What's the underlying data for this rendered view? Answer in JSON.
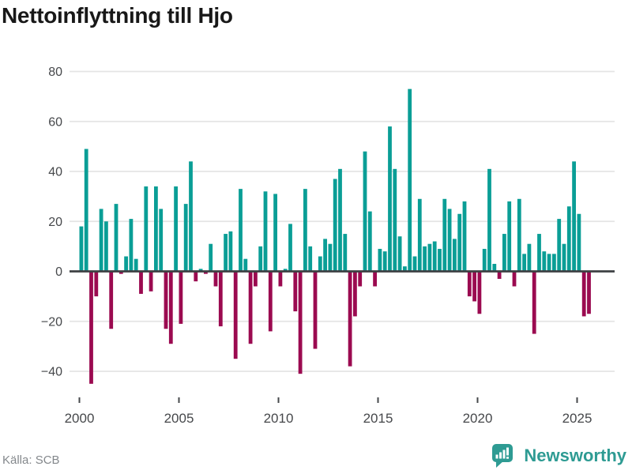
{
  "title": "Nettoinflyttning till Hjo",
  "source": {
    "label": "Källa: SCB"
  },
  "logo": {
    "text": "Newsworthy",
    "color": "#2e9b93"
  },
  "colors": {
    "positive_bar": "#0a9e96",
    "negative_bar": "#9b0a50",
    "grid_line": "#e4e4e4",
    "zero_line": "#3d4043",
    "axis_text": "#46484b",
    "title_text": "#181818",
    "source_text": "#84888c"
  },
  "chart_data": {
    "type": "bar",
    "title": "Nettoinflyttning till Hjo",
    "xlabel": "",
    "ylabel": "",
    "legend": "none",
    "grid": "horizontal",
    "ylim": [
      -50,
      85
    ],
    "y_ticks": [
      80,
      60,
      40,
      20,
      0,
      -20,
      -40
    ],
    "y_tick_labels": [
      "80",
      "60",
      "40",
      "20",
      "0",
      "−20",
      "−40"
    ],
    "x_tick_years": [
      "2000",
      "2005",
      "2010",
      "2015",
      "2020",
      "2025"
    ],
    "categories": [
      "2000Q1",
      "2000Q2",
      "2000Q3",
      "2000Q4",
      "2001Q1",
      "2001Q2",
      "2001Q3",
      "2001Q4",
      "2002Q1",
      "2002Q2",
      "2002Q3",
      "2002Q4",
      "2003Q1",
      "2003Q2",
      "2003Q3",
      "2003Q4",
      "2004Q1",
      "2004Q2",
      "2004Q3",
      "2004Q4",
      "2005Q1",
      "2005Q2",
      "2005Q3",
      "2005Q4",
      "2006Q1",
      "2006Q2",
      "2006Q3",
      "2006Q4",
      "2007Q1",
      "2007Q2",
      "2007Q3",
      "2007Q4",
      "2008Q1",
      "2008Q2",
      "2008Q3",
      "2008Q4",
      "2009Q1",
      "2009Q2",
      "2009Q3",
      "2009Q4",
      "2010Q1",
      "2010Q2",
      "2010Q3",
      "2010Q4",
      "2011Q1",
      "2011Q2",
      "2011Q3",
      "2011Q4",
      "2012Q1",
      "2012Q2",
      "2012Q3",
      "2012Q4",
      "2013Q1",
      "2013Q2",
      "2013Q3",
      "2013Q4",
      "2014Q1",
      "2014Q2",
      "2014Q3",
      "2014Q4",
      "2015Q1",
      "2015Q2",
      "2015Q3",
      "2015Q4",
      "2016Q1",
      "2016Q2",
      "2016Q3",
      "2016Q4",
      "2017Q1",
      "2017Q2",
      "2017Q3",
      "2017Q4",
      "2018Q1",
      "2018Q2",
      "2018Q3",
      "2018Q4",
      "2019Q1",
      "2019Q2",
      "2019Q3",
      "2019Q4",
      "2020Q1",
      "2020Q2",
      "2020Q3",
      "2020Q4",
      "2021Q1",
      "2021Q2",
      "2021Q3",
      "2021Q4",
      "2022Q1",
      "2022Q2",
      "2022Q3",
      "2022Q4",
      "2023Q1",
      "2023Q2",
      "2023Q3",
      "2023Q4",
      "2024Q1",
      "2024Q2",
      "2024Q3",
      "2024Q4",
      "2025Q1",
      "2025Q2",
      "2025Q3"
    ],
    "values": [
      18,
      49,
      -45,
      -10,
      25,
      20,
      -23,
      27,
      -1,
      6,
      21,
      5,
      -9,
      34,
      -8,
      34,
      25,
      -23,
      -29,
      34,
      -21,
      27,
      44,
      -4,
      1,
      -1,
      11,
      -6,
      -22,
      15,
      16,
      -35,
      33,
      5,
      -29,
      -6,
      10,
      32,
      -24,
      31,
      -6,
      1,
      19,
      -16,
      -41,
      33,
      10,
      -31,
      6,
      13,
      11,
      37,
      41,
      15,
      -38,
      -18,
      -6,
      48,
      24,
      -6,
      9,
      8,
      58,
      41,
      14,
      2,
      73,
      6,
      29,
      10,
      11,
      12,
      9,
      29,
      25,
      13,
      23,
      28,
      -10,
      -12,
      -17,
      9,
      41,
      3,
      -3,
      15,
      28,
      -6,
      29,
      7,
      11,
      -25,
      15,
      8,
      7,
      7,
      21,
      11,
      26,
      44,
      23,
      -18,
      -17
    ]
  }
}
